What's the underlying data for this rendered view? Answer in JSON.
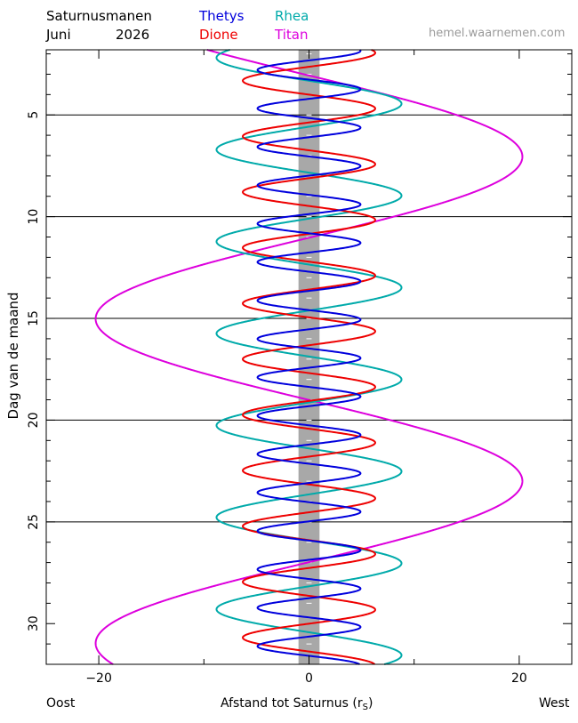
{
  "header": {
    "title": "Saturnusmanen",
    "month": "Juni",
    "year": "2026",
    "website": "hemel.waarnemen.com"
  },
  "legend": [
    {
      "name": "Thetys",
      "color": "#0000dd"
    },
    {
      "name": "Rhea",
      "color": "#00aaaa"
    },
    {
      "name": "Dione",
      "color": "#ee0000"
    },
    {
      "name": "Titan",
      "color": "#dd00dd"
    }
  ],
  "footer": {
    "left": "Oost",
    "xlabel_prefix": "Afstand tot Saturnus (r",
    "xlabel_sub": "S",
    "xlabel_suffix": ")",
    "right": "West"
  },
  "chart_data": {
    "type": "line",
    "title": "Saturnusmanen",
    "xlabel": "Afstand tot Saturnus (rS)",
    "ylabel": "Dag van de maand",
    "xlim": [
      -25,
      25
    ],
    "ylim": [
      1.8,
      32
    ],
    "y_inverted": true,
    "xticks": [
      -20,
      0,
      20
    ],
    "yticks": [
      5,
      10,
      15,
      20,
      25,
      30
    ],
    "gridlines_y": [
      5,
      10,
      15,
      20,
      25
    ],
    "planet_band": {
      "xmin": -1,
      "xmax": 1,
      "color": "#a8a8a8"
    },
    "series": [
      {
        "name": "Thetys",
        "amplitude": 4.9,
        "period_days": 1.8878,
        "phase_day": 1.85,
        "color": "#0000dd"
      },
      {
        "name": "Dione",
        "amplitude": 6.3,
        "period_days": 2.7369,
        "phase_day": 1.95,
        "color": "#ee0000"
      },
      {
        "name": "Rhea",
        "amplitude": 8.8,
        "period_days": 4.5175,
        "phase_day": 4.45,
        "color": "#00aaaa"
      },
      {
        "name": "Titan",
        "amplitude": 20.3,
        "period_days": 15.945,
        "phase_day": 7.05,
        "color": "#dd00dd"
      }
    ]
  }
}
